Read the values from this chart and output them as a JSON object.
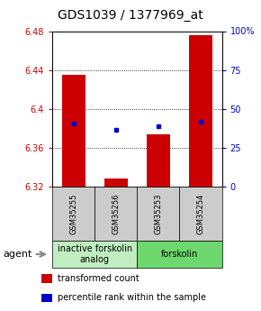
{
  "title": "GDS1039 / 1377969_at",
  "samples": [
    "GSM35255",
    "GSM35256",
    "GSM35253",
    "GSM35254"
  ],
  "bar_bottoms": [
    6.32,
    6.32,
    6.32,
    6.32
  ],
  "bar_tops": [
    6.435,
    6.328,
    6.374,
    6.476
  ],
  "blue_dot_values": [
    6.385,
    6.378,
    6.382,
    6.387
  ],
  "ylim": [
    6.32,
    6.48
  ],
  "yticks_left": [
    6.32,
    6.36,
    6.4,
    6.44,
    6.48
  ],
  "yticks_right": [
    0,
    25,
    50,
    75,
    100
  ],
  "ytick_labels_right": [
    "0",
    "25",
    "50",
    "75",
    "100%"
  ],
  "groups": [
    {
      "label": "inactive forskolin\nanalog",
      "cols": [
        0,
        1
      ],
      "color": "#c0eec0"
    },
    {
      "label": "forskolin",
      "cols": [
        2,
        3
      ],
      "color": "#6dd86d"
    }
  ],
  "bar_color": "#cc0000",
  "dot_color": "#0000cc",
  "bar_width": 0.55,
  "agent_label": "agent",
  "legend_items": [
    {
      "color": "#cc0000",
      "label": "transformed count"
    },
    {
      "color": "#0000cc",
      "label": "percentile rank within the sample"
    }
  ],
  "left_tick_color": "#cc0000",
  "right_tick_color": "#0000cc",
  "sample_box_color": "#cccccc",
  "title_fontsize": 10,
  "tick_fontsize": 7,
  "sample_fontsize": 6,
  "group_fontsize": 7,
  "legend_fontsize": 7,
  "agent_fontsize": 8
}
